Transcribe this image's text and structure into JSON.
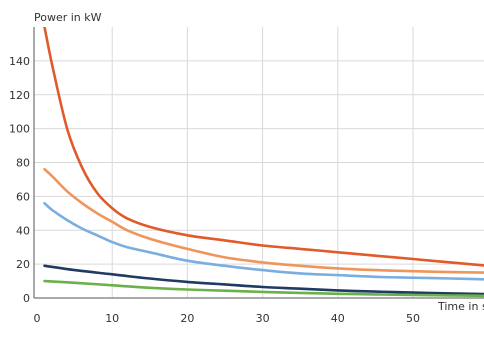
{
  "chart_data": {
    "type": "line",
    "title": "",
    "ylabel": "Power in kW",
    "xlabel": "Time in s",
    "xlim": [
      0,
      60
    ],
    "ylim": [
      0,
      160
    ],
    "x_ticks": [
      0,
      10,
      20,
      30,
      40,
      50
    ],
    "y_ticks": [
      0,
      20,
      40,
      60,
      80,
      100,
      120,
      140
    ],
    "grid": true,
    "legend": "none",
    "series": [
      {
        "color": "#e05a2b",
        "x": [
          1,
          2,
          4,
          6,
          8,
          10,
          12,
          15,
          20,
          25,
          30,
          35,
          40,
          45,
          50,
          55,
          60
        ],
        "y": [
          160,
          138,
          100,
          77,
          62,
          53,
          47,
          42,
          37,
          34,
          31,
          29,
          27,
          25,
          23,
          21,
          19
        ]
      },
      {
        "color": "#f0955a",
        "x": [
          1,
          2,
          4,
          6,
          8,
          10,
          12,
          15,
          20,
          25,
          30,
          35,
          40,
          45,
          50,
          55,
          60
        ],
        "y": [
          76,
          72,
          63,
          56,
          50,
          45,
          40,
          35,
          29,
          24,
          21,
          19,
          17.5,
          16.5,
          15.8,
          15.3,
          15
        ]
      },
      {
        "color": "#7aaee0",
        "x": [
          1,
          2,
          4,
          6,
          8,
          10,
          12,
          15,
          20,
          25,
          30,
          35,
          40,
          45,
          50,
          55,
          60
        ],
        "y": [
          56,
          52,
          46,
          41,
          37,
          33,
          30,
          27,
          22,
          19,
          16.5,
          14.5,
          13.5,
          12.5,
          12,
          11.5,
          11
        ]
      },
      {
        "color": "#1f3a63",
        "x": [
          1,
          5,
          10,
          15,
          20,
          25,
          30,
          35,
          40,
          45,
          50,
          55,
          60
        ],
        "y": [
          19,
          16.5,
          14,
          11.5,
          9.5,
          8,
          6.5,
          5.5,
          4.5,
          3.8,
          3.2,
          2.7,
          2.3
        ]
      },
      {
        "color": "#6ab04c",
        "x": [
          1,
          5,
          10,
          15,
          20,
          25,
          30,
          35,
          40,
          45,
          50,
          55,
          60
        ],
        "y": [
          10,
          9,
          7.5,
          6,
          5,
          4.3,
          3.6,
          3,
          2.5,
          2.1,
          1.8,
          1.5,
          1.3
        ]
      }
    ]
  }
}
